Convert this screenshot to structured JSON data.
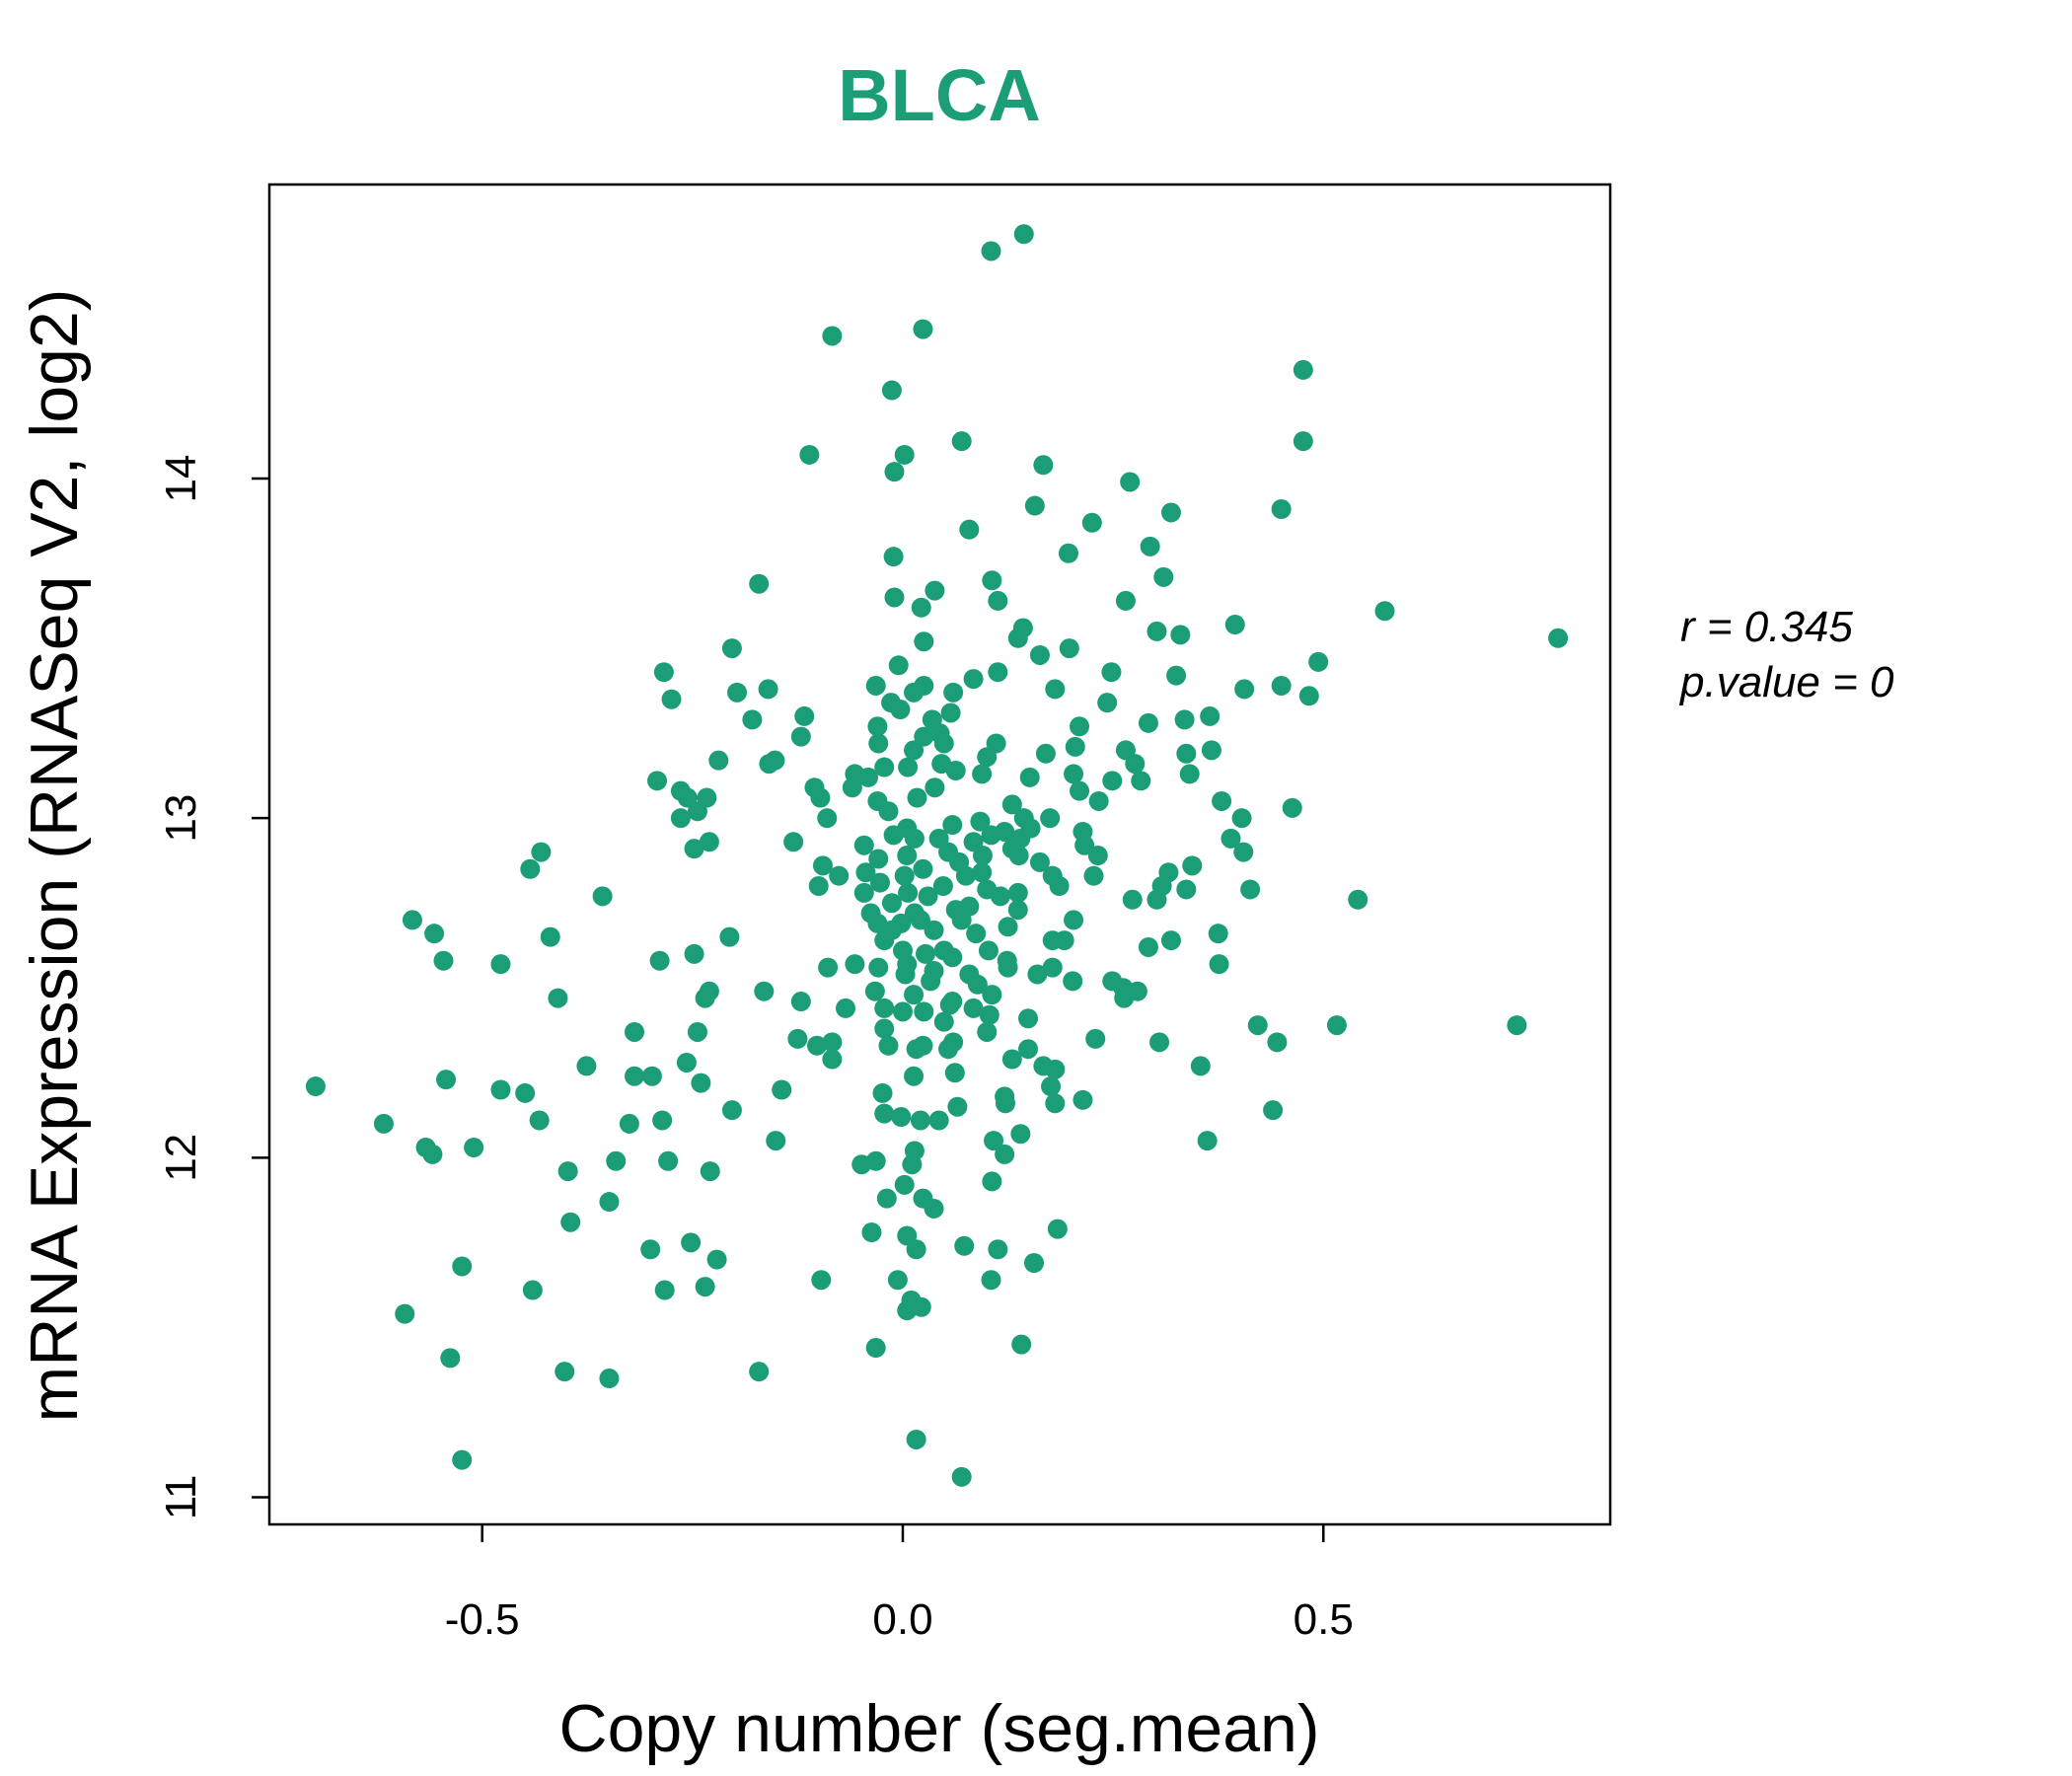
{
  "chart_data": {
    "type": "scatter",
    "title": "BLCA",
    "xlabel": "Copy number (seg.mean)",
    "ylabel": "mRNA Expression (RNASeq V2, log2)",
    "xlim": [
      -0.753,
      0.841
    ],
    "ylim": [
      10.92,
      14.866
    ],
    "xticks": [
      -0.5,
      0.0,
      0.5
    ],
    "xtick_labels": [
      "-0.5",
      "0.0",
      "0.5"
    ],
    "yticks": [
      11,
      12,
      13,
      14
    ],
    "ytick_labels": [
      "11",
      "12",
      "13",
      "14"
    ],
    "grid": false,
    "point_color": "#1b9e77",
    "title_color": "#1b9e77",
    "annotations": {
      "r_label": "r = 0.345",
      "p_label": "p.value = 0"
    },
    "points": [
      [
        0.144,
        14.72
      ],
      [
        0.105,
        14.67
      ],
      [
        -0.084,
        14.42
      ],
      [
        0.024,
        14.44
      ],
      [
        -0.013,
        14.26
      ],
      [
        0.476,
        14.32
      ],
      [
        0.476,
        14.11
      ],
      [
        0.07,
        14.11
      ],
      [
        -0.111,
        14.07
      ],
      [
        0.002,
        14.07
      ],
      [
        -0.01,
        14.02
      ],
      [
        0.167,
        14.04
      ],
      [
        0.27,
        13.99
      ],
      [
        0.157,
        13.92
      ],
      [
        0.45,
        13.91
      ],
      [
        0.319,
        13.9
      ],
      [
        0.225,
        13.87
      ],
      [
        0.079,
        13.85
      ],
      [
        0.294,
        13.8
      ],
      [
        0.197,
        13.78
      ],
      [
        -0.011,
        13.77
      ],
      [
        0.31,
        13.71
      ],
      [
        0.106,
        13.7
      ],
      [
        -0.171,
        13.69
      ],
      [
        0.038,
        13.67
      ],
      [
        -0.01,
        13.65
      ],
      [
        0.113,
        13.64
      ],
      [
        0.265,
        13.64
      ],
      [
        0.022,
        13.62
      ],
      [
        0.573,
        13.61
      ],
      [
        0.395,
        13.57
      ],
      [
        0.302,
        13.55
      ],
      [
        0.143,
        13.56
      ],
      [
        0.33,
        13.54
      ],
      [
        0.137,
        13.53
      ],
      [
        0.025,
        13.52
      ],
      [
        0.779,
        13.53
      ],
      [
        -0.203,
        13.5
      ],
      [
        0.163,
        13.48
      ],
      [
        0.198,
        13.5
      ],
      [
        0.494,
        13.46
      ],
      [
        -0.005,
        13.45
      ],
      [
        -0.284,
        13.43
      ],
      [
        0.248,
        13.43
      ],
      [
        0.325,
        13.42
      ],
      [
        0.113,
        13.43
      ],
      [
        0.084,
        13.41
      ],
      [
        -0.16,
        13.38
      ],
      [
        -0.197,
        13.37
      ],
      [
        -0.032,
        13.39
      ],
      [
        0.025,
        13.39
      ],
      [
        0.013,
        13.37
      ],
      [
        0.406,
        13.38
      ],
      [
        0.45,
        13.39
      ],
      [
        0.483,
        13.36
      ],
      [
        0.181,
        13.38
      ],
      [
        0.06,
        13.37
      ],
      [
        -0.275,
        13.35
      ],
      [
        0.243,
        13.34
      ],
      [
        -0.014,
        13.34
      ],
      [
        -0.003,
        13.32
      ],
      [
        -0.117,
        13.3
      ],
      [
        0.057,
        13.31
      ],
      [
        0.365,
        13.3
      ],
      [
        -0.179,
        13.29
      ],
      [
        0.335,
        13.29
      ],
      [
        0.035,
        13.29
      ],
      [
        -0.03,
        13.27
      ],
      [
        0.21,
        13.27
      ],
      [
        -0.121,
        13.24
      ],
      [
        0.044,
        13.25
      ],
      [
        0.025,
        13.24
      ],
      [
        0.292,
        13.28
      ],
      [
        -0.029,
        13.22
      ],
      [
        0.205,
        13.21
      ],
      [
        0.111,
        13.22
      ],
      [
        0.049,
        13.22
      ],
      [
        0.013,
        13.2
      ],
      [
        0.265,
        13.2
      ],
      [
        0.337,
        13.19
      ],
      [
        0.367,
        13.2
      ],
      [
        0.17,
        13.19
      ],
      [
        -0.219,
        13.17
      ],
      [
        -0.152,
        13.17
      ],
      [
        -0.159,
        13.16
      ],
      [
        0.276,
        13.16
      ],
      [
        0.1,
        13.18
      ],
      [
        0.006,
        13.15
      ],
      [
        0.046,
        13.16
      ],
      [
        -0.022,
        13.15
      ],
      [
        -0.057,
        13.13
      ],
      [
        0.063,
        13.14
      ],
      [
        0.094,
        13.13
      ],
      [
        0.341,
        13.13
      ],
      [
        0.203,
        13.13
      ],
      [
        -0.292,
        13.11
      ],
      [
        -0.041,
        13.12
      ],
      [
        0.151,
        13.12
      ],
      [
        0.283,
        13.11
      ],
      [
        -0.105,
        13.09
      ],
      [
        -0.264,
        13.08
      ],
      [
        0.038,
        13.09
      ],
      [
        0.21,
        13.08
      ],
      [
        0.249,
        13.11
      ],
      [
        -0.06,
        13.09
      ],
      [
        -0.256,
        13.06
      ],
      [
        -0.233,
        13.06
      ],
      [
        -0.098,
        13.06
      ],
      [
        -0.03,
        13.05
      ],
      [
        0.017,
        13.06
      ],
      [
        0.233,
        13.05
      ],
      [
        0.379,
        13.05
      ],
      [
        0.463,
        13.03
      ],
      [
        -0.244,
        13.02
      ],
      [
        -0.264,
        13.0
      ],
      [
        0.13,
        13.04
      ],
      [
        -0.017,
        13.02
      ],
      [
        -0.09,
        13.0
      ],
      [
        0.144,
        13.0
      ],
      [
        0.175,
        13.0
      ],
      [
        0.092,
        12.99
      ],
      [
        0.403,
        13.0
      ],
      [
        0.059,
        12.98
      ],
      [
        0.005,
        12.97
      ],
      [
        0.121,
        12.96
      ],
      [
        0.152,
        12.97
      ],
      [
        0.214,
        12.96
      ],
      [
        0.105,
        12.95
      ],
      [
        0.043,
        12.94
      ],
      [
        0.39,
        12.94
      ],
      [
        -0.011,
        12.95
      ],
      [
        0.014,
        12.94
      ],
      [
        -0.13,
        12.93
      ],
      [
        -0.23,
        12.93
      ],
      [
        0.14,
        12.94
      ],
      [
        -0.248,
        12.91
      ],
      [
        0.084,
        12.93
      ],
      [
        0.216,
        12.92
      ],
      [
        -0.046,
        12.92
      ],
      [
        0.13,
        12.91
      ],
      [
        0.054,
        12.9
      ],
      [
        0.232,
        12.89
      ],
      [
        0.405,
        12.9
      ],
      [
        -0.43,
        12.9
      ],
      [
        0.005,
        12.89
      ],
      [
        0.095,
        12.89
      ],
      [
        0.138,
        12.89
      ],
      [
        -0.029,
        12.88
      ],
      [
        0.163,
        12.87
      ],
      [
        0.067,
        12.87
      ],
      [
        -0.095,
        12.86
      ],
      [
        0.344,
        12.86
      ],
      [
        -0.443,
        12.85
      ],
      [
        0.024,
        12.85
      ],
      [
        -0.044,
        12.84
      ],
      [
        0.094,
        12.84
      ],
      [
        0.316,
        12.84
      ],
      [
        0.227,
        12.83
      ],
      [
        -0.076,
        12.83
      ],
      [
        0.178,
        12.83
      ],
      [
        0.075,
        12.83
      ],
      [
        0.002,
        12.83
      ],
      [
        -0.1,
        12.8
      ],
      [
        -0.027,
        12.81
      ],
      [
        0.186,
        12.8
      ],
      [
        0.048,
        12.8
      ],
      [
        0.308,
        12.8
      ],
      [
        0.337,
        12.79
      ],
      [
        0.413,
        12.79
      ],
      [
        0.1,
        12.79
      ],
      [
        0.006,
        12.78
      ],
      [
        -0.046,
        12.78
      ],
      [
        0.137,
        12.78
      ],
      [
        0.116,
        12.77
      ],
      [
        -0.357,
        12.77
      ],
      [
        0.03,
        12.77
      ],
      [
        0.302,
        12.76
      ],
      [
        0.273,
        12.76
      ],
      [
        0.541,
        12.76
      ],
      [
        -0.013,
        12.75
      ],
      [
        0.079,
        12.74
      ],
      [
        0.137,
        12.73
      ],
      [
        0.014,
        12.72
      ],
      [
        0.063,
        12.73
      ],
      [
        -0.038,
        12.72
      ],
      [
        -0.583,
        12.7
      ],
      [
        0.021,
        12.7
      ],
      [
        0.07,
        12.7
      ],
      [
        0.203,
        12.7
      ],
      [
        -0.002,
        12.69
      ],
      [
        -0.03,
        12.69
      ],
      [
        0.125,
        12.68
      ],
      [
        -0.013,
        12.67
      ],
      [
        0.037,
        12.67
      ],
      [
        -0.557,
        12.66
      ],
      [
        0.087,
        12.66
      ],
      [
        0.375,
        12.66
      ],
      [
        -0.206,
        12.65
      ],
      [
        -0.419,
        12.65
      ],
      [
        0.319,
        12.64
      ],
      [
        0.178,
        12.64
      ],
      [
        -0.022,
        12.64
      ],
      [
        0.192,
        12.64
      ],
      [
        0.049,
        12.61
      ],
      [
        0.292,
        12.62
      ],
      [
        0.0,
        12.61
      ],
      [
        0.102,
        12.61
      ],
      [
        0.027,
        12.6
      ],
      [
        0.059,
        12.59
      ],
      [
        -0.248,
        12.6
      ],
      [
        -0.546,
        12.58
      ],
      [
        -0.289,
        12.58
      ],
      [
        0.124,
        12.58
      ],
      [
        -0.057,
        12.57
      ],
      [
        -0.478,
        12.57
      ],
      [
        -0.089,
        12.56
      ],
      [
        0.005,
        12.57
      ],
      [
        0.178,
        12.56
      ],
      [
        0.16,
        12.54
      ],
      [
        0.376,
        12.57
      ],
      [
        0.125,
        12.56
      ],
      [
        -0.029,
        12.56
      ],
      [
        0.037,
        12.55
      ],
      [
        0.003,
        12.54
      ],
      [
        0.079,
        12.54
      ],
      [
        0.033,
        12.52
      ],
      [
        0.202,
        12.52
      ],
      [
        0.249,
        12.52
      ],
      [
        0.262,
        12.5
      ],
      [
        0.279,
        12.49
      ],
      [
        -0.23,
        12.49
      ],
      [
        0.089,
        12.51
      ],
      [
        -0.165,
        12.49
      ],
      [
        -0.033,
        12.49
      ],
      [
        0.106,
        12.48
      ],
      [
        -0.235,
        12.47
      ],
      [
        0.013,
        12.48
      ],
      [
        -0.41,
        12.47
      ],
      [
        0.263,
        12.47
      ],
      [
        0.059,
        12.46
      ],
      [
        -0.121,
        12.46
      ],
      [
        0.056,
        12.45
      ],
      [
        -0.022,
        12.44
      ],
      [
        -0.068,
        12.44
      ],
      [
        0.084,
        12.44
      ],
      [
        0.025,
        12.43
      ],
      [
        0.0,
        12.43
      ],
      [
        0.103,
        12.42
      ],
      [
        0.149,
        12.41
      ],
      [
        0.049,
        12.4
      ],
      [
        0.516,
        12.39
      ],
      [
        0.422,
        12.39
      ],
      [
        0.73,
        12.39
      ],
      [
        -0.319,
        12.37
      ],
      [
        -0.244,
        12.37
      ],
      [
        0.1,
        12.37
      ],
      [
        -0.022,
        12.38
      ],
      [
        -0.125,
        12.35
      ],
      [
        0.229,
        12.35
      ],
      [
        0.445,
        12.34
      ],
      [
        0.06,
        12.34
      ],
      [
        0.024,
        12.33
      ],
      [
        -0.084,
        12.34
      ],
      [
        0.305,
        12.34
      ],
      [
        -0.102,
        12.33
      ],
      [
        -0.017,
        12.33
      ],
      [
        0.016,
        12.32
      ],
      [
        0.149,
        12.32
      ],
      [
        0.054,
        12.32
      ],
      [
        -0.084,
        12.29
      ],
      [
        0.13,
        12.29
      ],
      [
        -0.376,
        12.27
      ],
      [
        -0.257,
        12.28
      ],
      [
        0.354,
        12.27
      ],
      [
        0.167,
        12.27
      ],
      [
        0.181,
        12.26
      ],
      [
        -0.319,
        12.24
      ],
      [
        -0.298,
        12.24
      ],
      [
        0.062,
        12.25
      ],
      [
        -0.543,
        12.23
      ],
      [
        -0.24,
        12.22
      ],
      [
        -0.698,
        12.21
      ],
      [
        0.013,
        12.24
      ],
      [
        0.176,
        12.21
      ],
      [
        -0.478,
        12.2
      ],
      [
        -0.449,
        12.19
      ],
      [
        -0.144,
        12.2
      ],
      [
        -0.024,
        12.19
      ],
      [
        0.121,
        12.18
      ],
      [
        0.214,
        12.17
      ],
      [
        0.122,
        12.16
      ],
      [
        0.181,
        12.16
      ],
      [
        0.065,
        12.15
      ],
      [
        -0.203,
        12.14
      ],
      [
        -0.022,
        12.13
      ],
      [
        0.44,
        12.14
      ],
      [
        -0.002,
        12.12
      ],
      [
        0.021,
        12.11
      ],
      [
        0.043,
        12.11
      ],
      [
        -0.286,
        12.11
      ],
      [
        -0.617,
        12.1
      ],
      [
        -0.432,
        12.11
      ],
      [
        -0.325,
        12.1
      ],
      [
        0.14,
        12.07
      ],
      [
        0.362,
        12.05
      ],
      [
        -0.151,
        12.05
      ],
      [
        0.108,
        12.05
      ],
      [
        -0.567,
        12.03
      ],
      [
        -0.51,
        12.03
      ],
      [
        -0.559,
        12.01
      ],
      [
        0.014,
        12.02
      ],
      [
        0.121,
        12.01
      ],
      [
        -0.341,
        11.99
      ],
      [
        -0.279,
        11.99
      ],
      [
        -0.032,
        11.99
      ],
      [
        -0.049,
        11.98
      ],
      [
        -0.398,
        11.96
      ],
      [
        -0.229,
        11.96
      ],
      [
        0.011,
        11.98
      ],
      [
        0.106,
        11.93
      ],
      [
        0.002,
        11.92
      ],
      [
        -0.019,
        11.88
      ],
      [
        0.024,
        11.88
      ],
      [
        -0.349,
        11.87
      ],
      [
        0.037,
        11.85
      ],
      [
        -0.395,
        11.81
      ],
      [
        0.184,
        11.79
      ],
      [
        -0.037,
        11.78
      ],
      [
        0.005,
        11.77
      ],
      [
        -0.252,
        11.75
      ],
      [
        0.073,
        11.74
      ],
      [
        -0.3,
        11.73
      ],
      [
        0.016,
        11.73
      ],
      [
        0.113,
        11.73
      ],
      [
        -0.221,
        11.7
      ],
      [
        -0.524,
        11.68
      ],
      [
        0.156,
        11.69
      ],
      [
        -0.097,
        11.64
      ],
      [
        -0.006,
        11.64
      ],
      [
        0.105,
        11.64
      ],
      [
        -0.235,
        11.62
      ],
      [
        -0.44,
        11.61
      ],
      [
        -0.283,
        11.61
      ],
      [
        0.01,
        11.58
      ],
      [
        0.022,
        11.56
      ],
      [
        0.005,
        11.55
      ],
      [
        -0.592,
        11.54
      ],
      [
        0.141,
        11.45
      ],
      [
        -0.032,
        11.44
      ],
      [
        -0.538,
        11.41
      ],
      [
        -0.171,
        11.37
      ],
      [
        -0.402,
        11.37
      ],
      [
        -0.349,
        11.35
      ],
      [
        0.016,
        11.17
      ],
      [
        -0.524,
        11.11
      ],
      [
        0.07,
        11.06
      ]
    ]
  }
}
